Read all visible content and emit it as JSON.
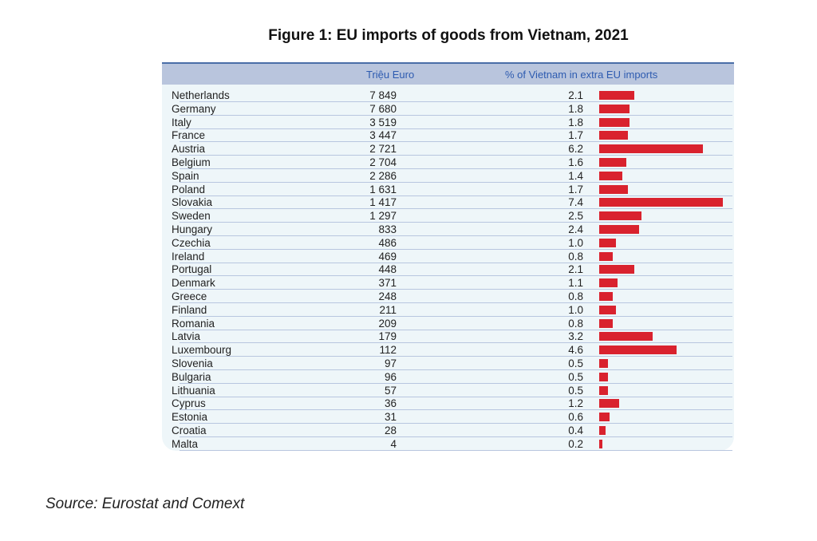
{
  "chart_data": {
    "type": "table",
    "title": "Figure 1: EU imports of goods from Vietnam, 2021",
    "columns": [
      "Triệu Euro",
      "% of Vietnam in extra EU imports"
    ],
    "categories": [
      "Netherlands",
      "Germany",
      "Italy",
      "France",
      "Austria",
      "Belgium",
      "Spain",
      "Poland",
      "Slovakia",
      "Sweden",
      "Hungary",
      "Czechia",
      "Ireland",
      "Portugal",
      "Denmark",
      "Greece",
      "Finland",
      "Romania",
      "Latvia",
      "Luxembourg",
      "Slovenia",
      "Bulgaria",
      "Lithuania",
      "Cyprus",
      "Estonia",
      "Croatia",
      "Malta"
    ],
    "values": [
      "7 849",
      "7 680",
      "3 519",
      "3 447",
      "2 721",
      "2 704",
      "2 286",
      "1 631",
      "1 417",
      "1 297",
      "833",
      "486",
      "469",
      "448",
      "371",
      "248",
      "211",
      "209",
      "179",
      "112",
      "97",
      "96",
      "57",
      "36",
      "31",
      "28",
      "4"
    ],
    "percent": [
      "2.1",
      "1.8",
      "1.8",
      "1.7",
      "6.2",
      "1.6",
      "1.4",
      "1.7",
      "7.4",
      "2.5",
      "2.4",
      "1.0",
      "0.8",
      "2.1",
      "1.1",
      "0.8",
      "1.0",
      "0.8",
      "3.2",
      "4.6",
      "0.5",
      "0.5",
      "0.5",
      "1.2",
      "0.6",
      "0.4",
      "0.2"
    ],
    "bar_color": "#d9222e"
  },
  "source": "Source: Eurostat and Comext"
}
